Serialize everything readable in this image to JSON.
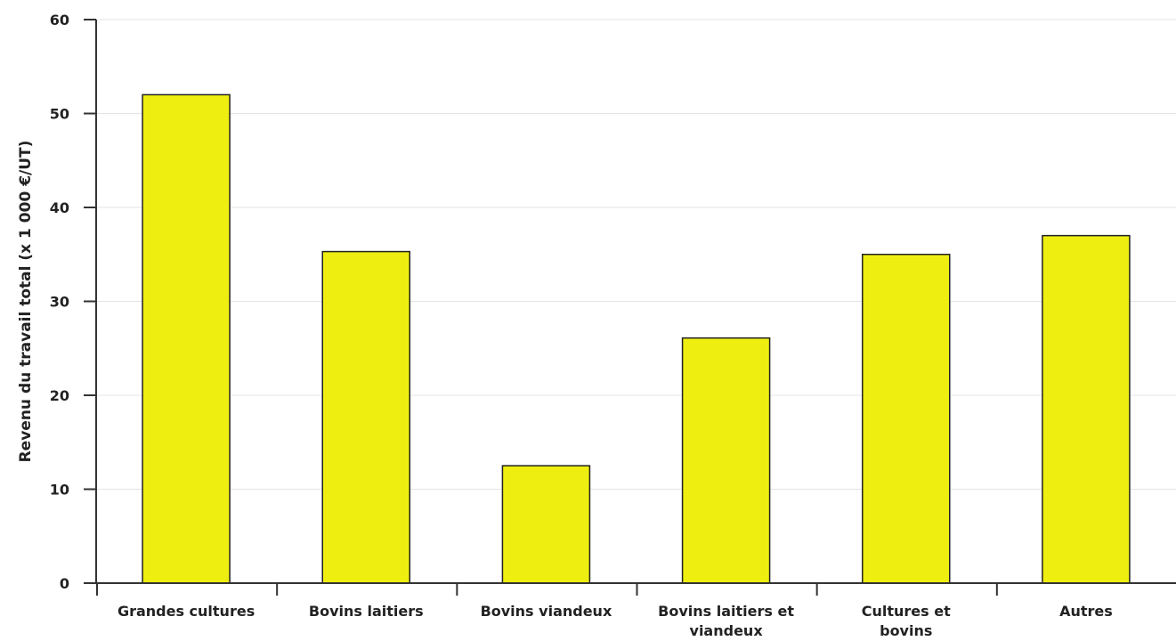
{
  "chart_data": {
    "type": "bar",
    "title": "",
    "xlabel": "",
    "ylabel": "Revenu du travail total (x 1 000 €/UT)",
    "ylim": [
      0,
      60
    ],
    "yticks": [
      0,
      10,
      20,
      30,
      40,
      50,
      60
    ],
    "grid": true,
    "legend": "none",
    "bar_color": "#eeee11",
    "bar_edge_color": "#222222",
    "categories": [
      [
        "Grandes cultures"
      ],
      [
        "Bovins laitiers"
      ],
      [
        "Bovins viandeux"
      ],
      [
        "Bovins laitiers et",
        "viandeux"
      ],
      [
        "Cultures et",
        "bovins"
      ],
      [
        "Autres"
      ]
    ],
    "values": [
      52,
      35.3,
      12.5,
      26.1,
      35,
      37
    ]
  }
}
